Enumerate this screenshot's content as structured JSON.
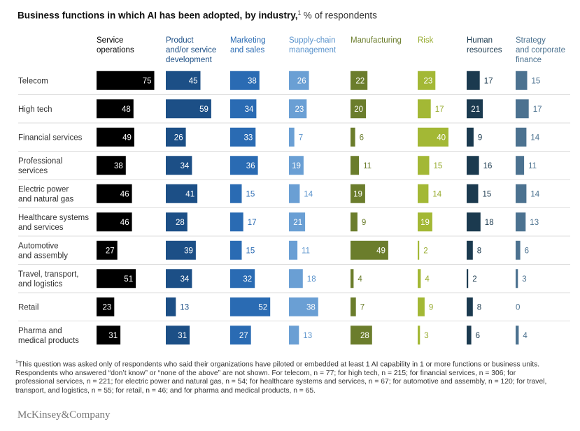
{
  "title": {
    "main": "Business functions in which AI has been adopted, by industry,",
    "footnote_marker": "1",
    "unit": "% of respondents"
  },
  "chart_data": {
    "type": "bar",
    "title": "Business functions in which AI has been adopted, by industry",
    "unit": "% of respondents",
    "columns": [
      {
        "label": [
          "Service",
          "operations"
        ],
        "color": "#000000",
        "text_color": "#000000"
      },
      {
        "label": [
          "Product",
          "and/or service",
          "development"
        ],
        "color": "#1c4f86",
        "text_color": "#1c4f86"
      },
      {
        "label": [
          "Marketing",
          "and sales"
        ],
        "color": "#2a6bb3",
        "text_color": "#2a6bb3"
      },
      {
        "label": [
          "Supply-chain",
          "management"
        ],
        "color": "#6a9fd4",
        "text_color": "#5a93cc"
      },
      {
        "label": [
          "Manufacturing"
        ],
        "color": "#6b7d2c",
        "text_color": "#6b7d2c"
      },
      {
        "label": [
          "Risk"
        ],
        "color": "#a3b835",
        "text_color": "#97ab2e"
      },
      {
        "label": [
          "Human",
          "resources"
        ],
        "color": "#1b3a4f",
        "text_color": "#1b3a4f"
      },
      {
        "label": [
          "Strategy",
          "and corporate",
          "finance"
        ],
        "color": "#4c7290",
        "text_color": "#4c7290"
      }
    ],
    "rows": [
      {
        "label": [
          "Telecom"
        ],
        "values": [
          75,
          45,
          38,
          26,
          22,
          23,
          17,
          15
        ]
      },
      {
        "label": [
          "High tech"
        ],
        "values": [
          48,
          59,
          34,
          23,
          20,
          17,
          21,
          17
        ]
      },
      {
        "label": [
          "Financial services"
        ],
        "values": [
          49,
          26,
          33,
          7,
          6,
          40,
          9,
          14
        ]
      },
      {
        "label": [
          "Professional",
          "services"
        ],
        "values": [
          38,
          34,
          36,
          19,
          11,
          15,
          16,
          11
        ]
      },
      {
        "label": [
          "Electric power",
          "and natural gas"
        ],
        "values": [
          46,
          41,
          15,
          14,
          19,
          14,
          15,
          14
        ]
      },
      {
        "label": [
          "Healthcare systems",
          "and services"
        ],
        "values": [
          46,
          28,
          17,
          21,
          9,
          19,
          18,
          13
        ]
      },
      {
        "label": [
          "Automotive",
          "and assembly"
        ],
        "values": [
          27,
          39,
          15,
          11,
          49,
          2,
          8,
          6
        ]
      },
      {
        "label": [
          "Travel, transport,",
          "and logistics"
        ],
        "values": [
          51,
          34,
          32,
          18,
          4,
          4,
          2,
          3
        ]
      },
      {
        "label": [
          "Retail"
        ],
        "values": [
          23,
          13,
          52,
          38,
          7,
          9,
          8,
          0
        ]
      },
      {
        "label": [
          "Pharma and",
          "medical products"
        ],
        "values": [
          31,
          31,
          27,
          13,
          28,
          3,
          6,
          4
        ]
      }
    ]
  },
  "footnote": {
    "marker": "1",
    "text": "This question was asked only of respondents who said their organizations have piloted or embedded at least 1 AI capability in 1 or more functions or business units. Respondents who answered “don’t know” or “none of the above” are not shown. For telecom, n = 77; for high tech, n = 215; for financial services, n = 306; for professional services, n = 221; for electric power and natural gas, n = 54; for healthcare systems and services, n = 67; for automotive and assembly, n = 120; for travel, transport, and logistics, n = 55; for retail, n = 46; and for pharma and medical products, n = 65."
  },
  "logo": "McKinsey&Company"
}
